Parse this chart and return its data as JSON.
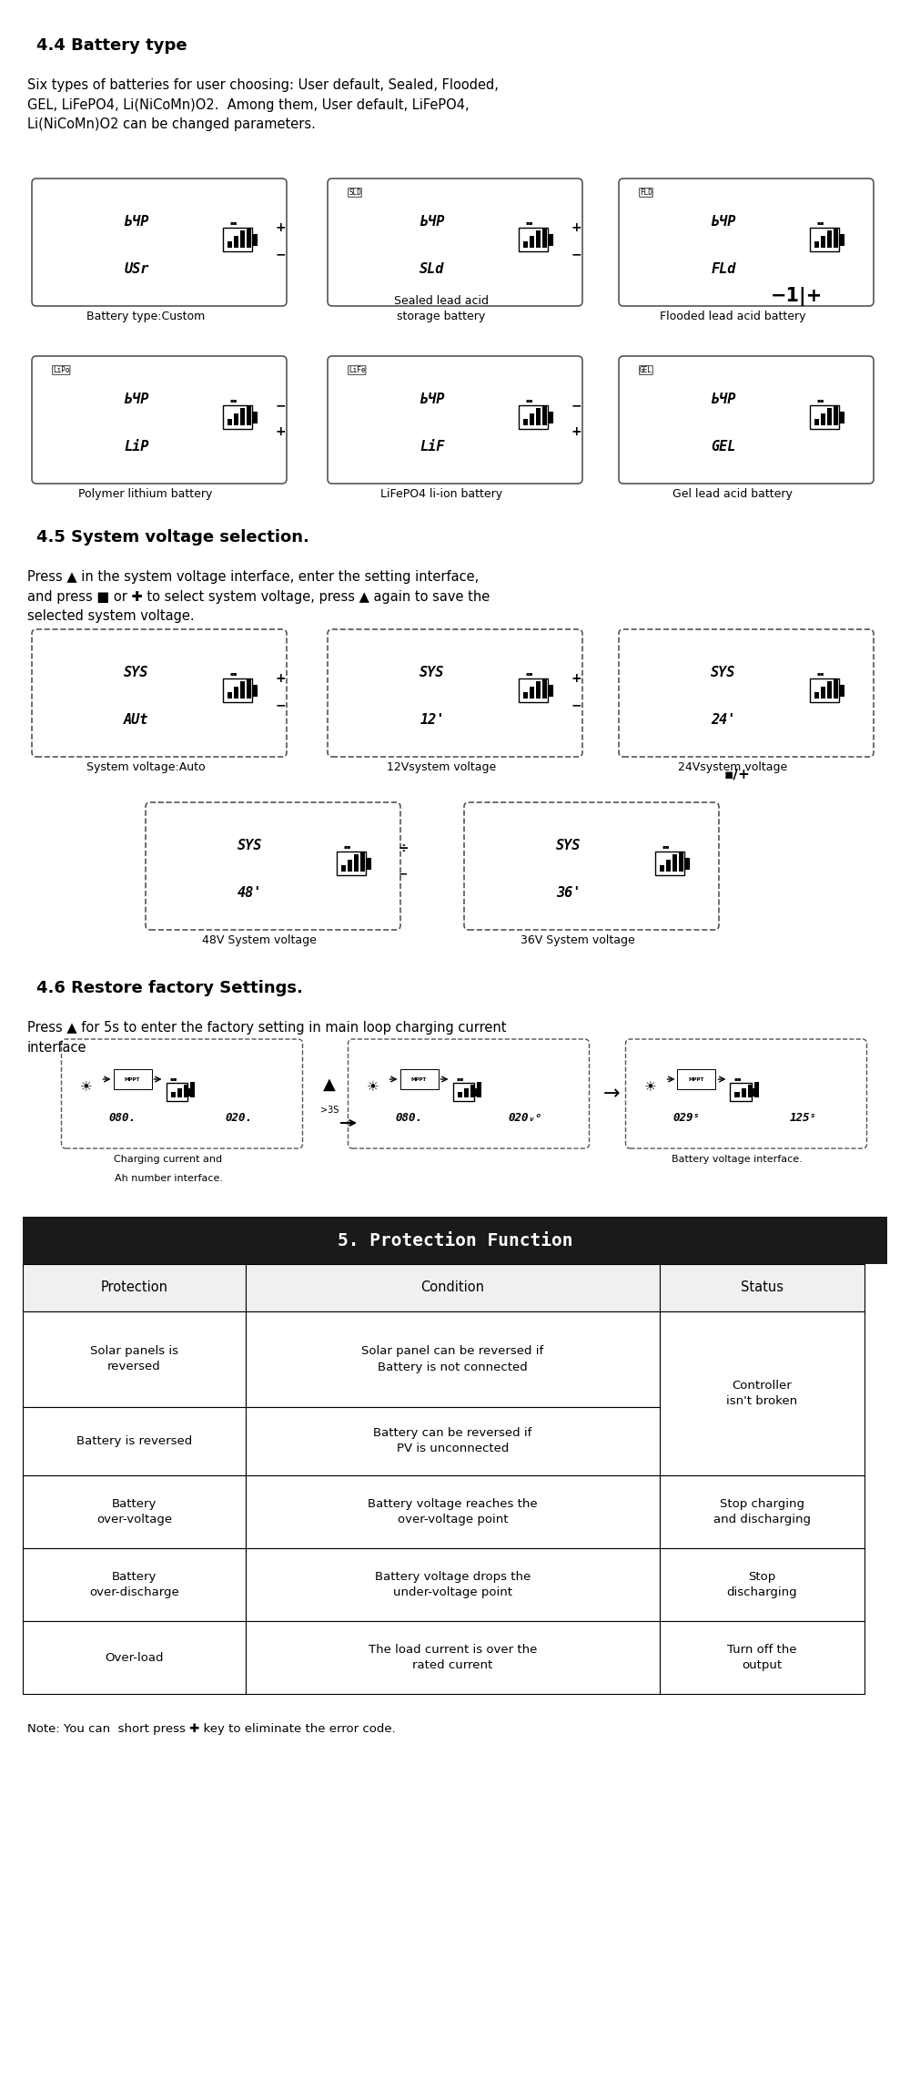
{
  "title_44": "4.4 Battery type",
  "text_44": "Six types of batteries for user choosing: User default, Sealed, Flooded,\nGEL, LiFePO4, Li(NiCoMn)O2.  Among them, User default, LiFePO4,\nLi(NiCoMn)O2 can be changed parameters.",
  "title_45": "4.5 System voltage selection.",
  "text_45_1": "Press ▲ in the system voltage interface, enter the setting interface,\nand press ■ or ✚ to select system voltage, press ▲ again to save the\nselected system voltage.",
  "title_46": "4.6 Restore factory Settings.",
  "text_46": "Press ▲ for 5s to enter the factory setting in main loop charging current\ninterface",
  "section5_title": "5. Protection Function",
  "table_headers": [
    "Protection",
    "Condition",
    "Status"
  ],
  "table_rows": [
    [
      "Solar panels is\nreversed",
      "Solar panel can be reversed if\nBattery is not connected",
      "Controller\nisn't broken"
    ],
    [
      "Battery is reversed",
      "Battery can be reversed if\nPV is unconnected",
      "Controller\nisn't broken"
    ],
    [
      "Battery\nover-voltage",
      "Battery voltage reaches the\nover-voltage point",
      "Stop charging\nand discharging"
    ],
    [
      "Battery\nover-discharge",
      "Battery voltage drops the\nunder-voltage point",
      "Stop\ndischarging"
    ],
    [
      "Over-load",
      "The load current is over the\nrated current",
      "Turn off the\noutput"
    ]
  ],
  "note": "Note: You can  short press ✚ key to eliminate the error code.",
  "bg_color": "#ffffff",
  "text_color": "#000000",
  "section5_bg": "#1a1a1a",
  "section5_fg": "#ffffff"
}
